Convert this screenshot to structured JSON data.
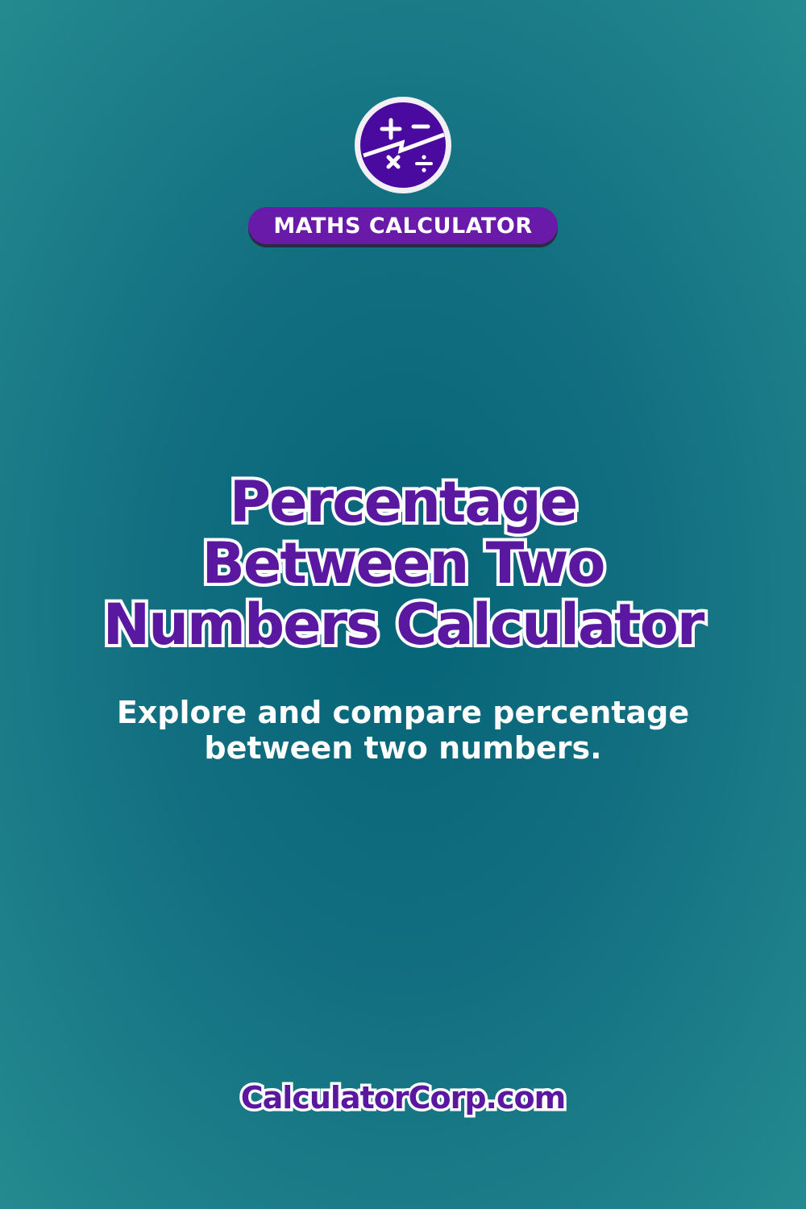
{
  "brand": {
    "logo_icon": "math-operators-icon",
    "badge": "MATHS CALCULATOR"
  },
  "title": {
    "line1": "Percentage",
    "line2": "Between Two",
    "line3": "Numbers Calculator"
  },
  "subtitle": {
    "line1": "Explore and compare percentage",
    "line2": "between two numbers."
  },
  "footer": {
    "site": "CalculatorCorp.com"
  },
  "colors": {
    "background": "#126f80",
    "accent": "#5a17a0",
    "badge": "#6a1aa8"
  }
}
